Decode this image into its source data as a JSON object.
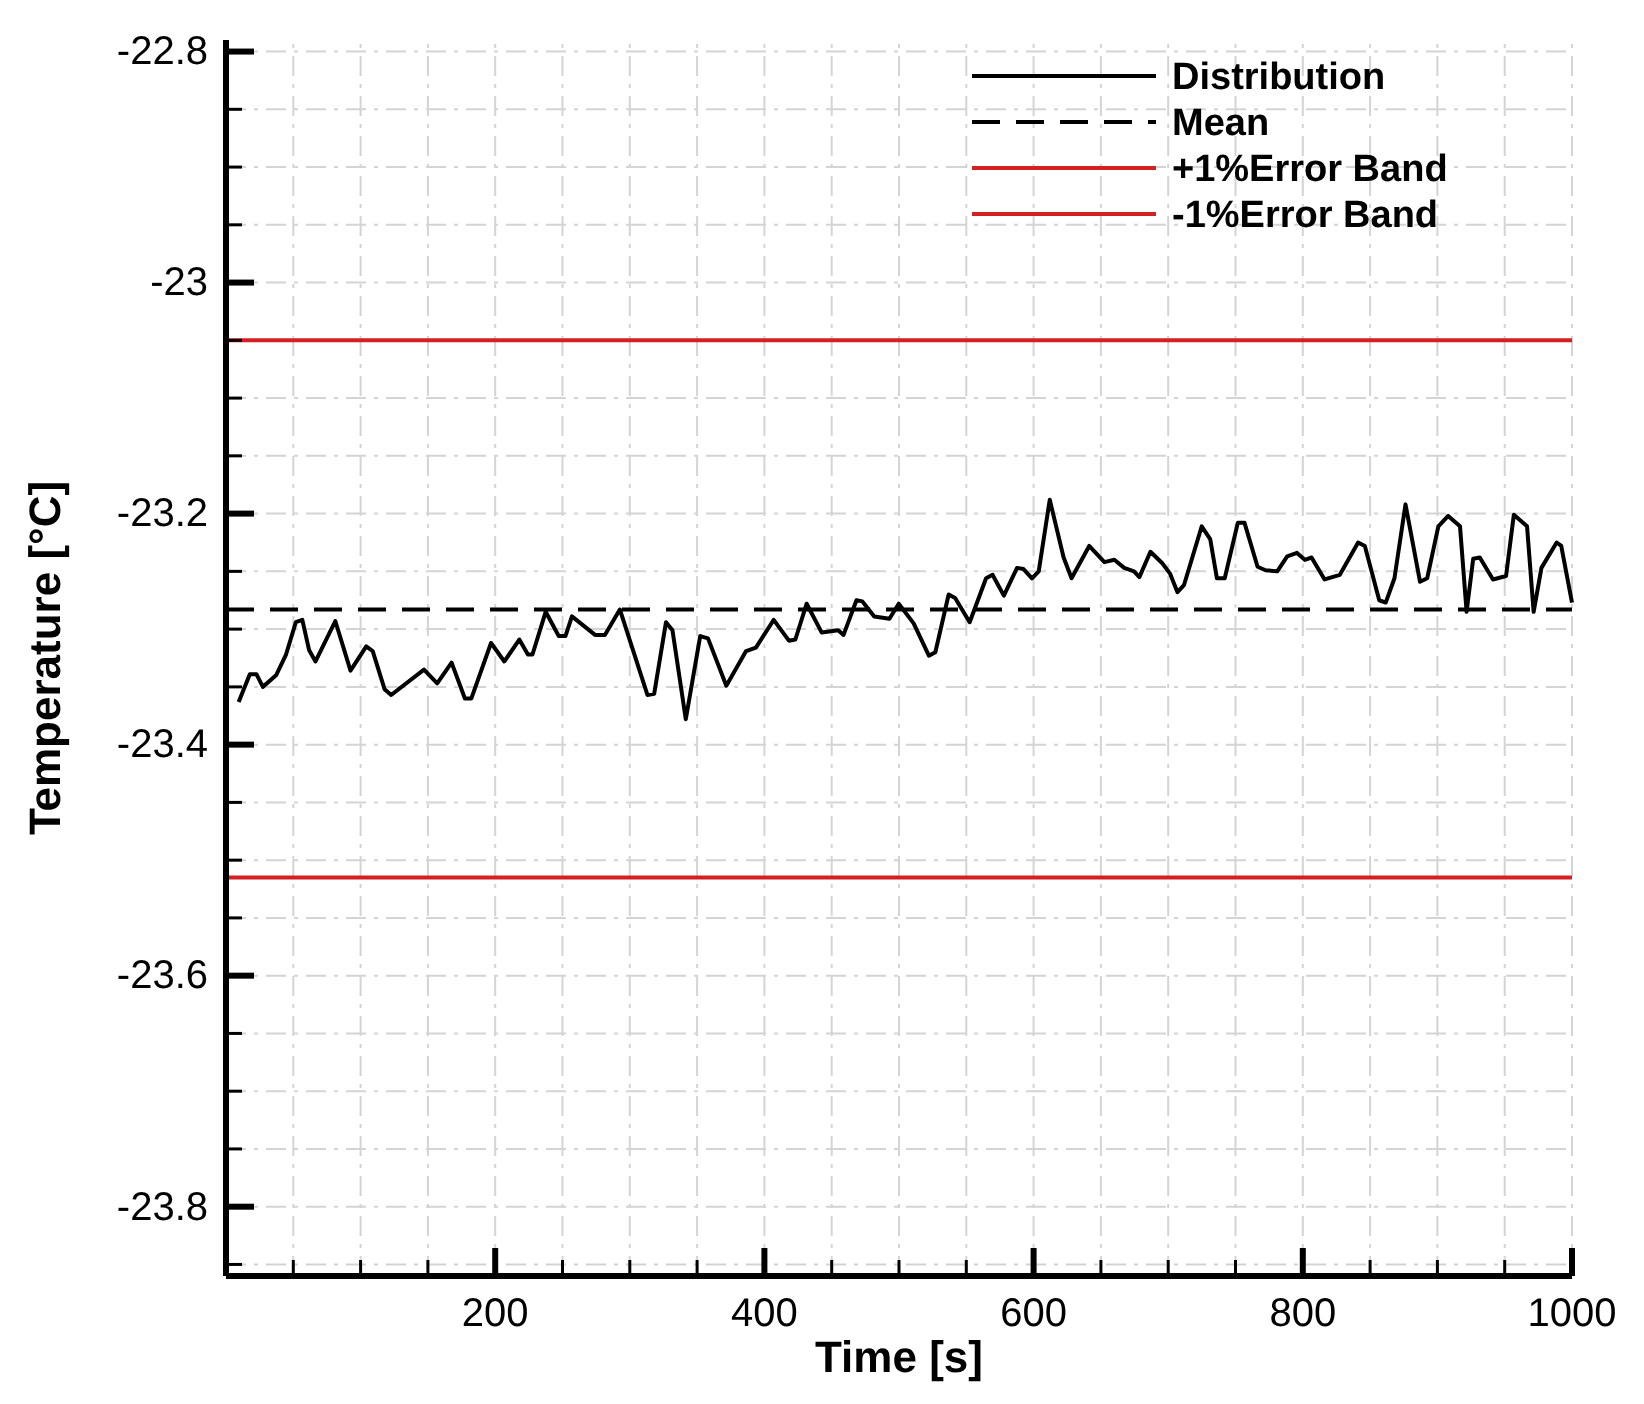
{
  "chart_data": {
    "type": "line",
    "xlabel": "Time [s]",
    "ylabel": "Temperature [°C]",
    "xlim": [
      0,
      1000
    ],
    "ylim": [
      -23.86,
      -22.79
    ],
    "xticks": [
      {
        "value": 50,
        "label": null
      },
      200,
      {
        "value": 100,
        "label": null
      },
      {
        "value": 150,
        "label": null
      },
      {
        "value": 250,
        "label": null
      },
      {
        "value": 300,
        "label": null
      },
      {
        "value": 350,
        "label": null
      },
      400,
      {
        "value": 450,
        "label": null
      },
      {
        "value": 500,
        "label": null
      },
      {
        "value": 550,
        "label": null
      },
      600,
      {
        "value": 650,
        "label": null
      },
      {
        "value": 700,
        "label": null
      },
      {
        "value": 750,
        "label": null
      },
      800,
      {
        "value": 850,
        "label": null
      },
      {
        "value": 900,
        "label": null
      },
      {
        "value": 950,
        "label": null
      },
      1000
    ],
    "yticks": [
      -22.8,
      {
        "value": -22.85,
        "label": null
      },
      {
        "value": -22.9,
        "label": null
      },
      {
        "value": -22.95,
        "label": null
      },
      -23,
      {
        "value": -23.05,
        "label": null
      },
      {
        "value": -23.1,
        "label": null
      },
      {
        "value": -23.15,
        "label": null
      },
      -23.2,
      {
        "value": -23.25,
        "label": null
      },
      {
        "value": -23.3,
        "label": null
      },
      {
        "value": -23.35,
        "label": null
      },
      -23.4,
      {
        "value": -23.45,
        "label": null
      },
      {
        "value": -23.5,
        "label": null
      },
      {
        "value": -23.55,
        "label": null
      },
      -23.6,
      {
        "value": -23.65,
        "label": null
      },
      {
        "value": -23.7,
        "label": null
      },
      {
        "value": -23.75,
        "label": null
      },
      -23.8,
      {
        "value": -23.85,
        "label": null
      }
    ],
    "grid": true,
    "legend": "top right",
    "series": [
      {
        "name": "Distribution",
        "color": "#000000",
        "line_style": "solid",
        "x": [
          9.4,
          17.7,
          22.6,
          27.4,
          37.2,
          44.6,
          51.9,
          56.7,
          61.7,
          66.5,
          81.2,
          92.5,
          104.2,
          109,
          117.8,
          122.7,
          147.1,
          156.9,
          167.6,
          177.5,
          182.3,
          196.9,
          206.8,
          217.9,
          224.3,
          227.7,
          237.5,
          247.2,
          252.2,
          257,
          274.2,
          281.5,
          292.6,
          313.1,
          318.1,
          326.9,
          331.7,
          341.6,
          352.3,
          358.1,
          371.7,
          386.4,
          393.7,
          406.9,
          418.2,
          423,
          431.4,
          442.6,
          454.8,
          458.8,
          468.4,
          472.8,
          481.6,
          492.9,
          499.8,
          510.9,
          522.2,
          527,
          536.9,
          541.7,
          552.5,
          564.7,
          569.5,
          577.9,
          587.7,
          592.5,
          598.8,
          603.8,
          612,
          622.3,
          628.2,
          641.3,
          652.6,
          660,
          667.3,
          674.6,
          678.6,
          686.8,
          695.6,
          701.4,
          706.9,
          711.7,
          724.9,
          731.2,
          736.2,
          742,
          751.7,
          756.7,
          766.4,
          772.3,
          781,
          788.4,
          795.7,
          801.5,
          806.5,
          816.2,
          827.5,
          841.1,
          846.1,
          856.8,
          861.6,
          868.1,
          876.3,
          887.1,
          892.4,
          900.7,
          908,
          916.8,
          921.7,
          926.6,
          931.5,
          941.3,
          951,
          956.8,
          966.6,
          971.5,
          977.3,
          988.6,
          992,
          1000
        ],
        "values": [
          -23.363,
          -23.339,
          -23.339,
          -23.35,
          -23.34,
          -23.322,
          -23.294,
          -23.292,
          -23.318,
          -23.328,
          -23.293,
          -23.336,
          -23.315,
          -23.319,
          -23.352,
          -23.357,
          -23.335,
          -23.347,
          -23.329,
          -23.36,
          -23.36,
          -23.312,
          -23.328,
          -23.309,
          -23.322,
          -23.322,
          -23.285,
          -23.306,
          -23.306,
          -23.289,
          -23.305,
          -23.305,
          -23.283,
          -23.357,
          -23.356,
          -23.294,
          -23.301,
          -23.378,
          -23.306,
          -23.308,
          -23.349,
          -23.319,
          -23.316,
          -23.292,
          -23.31,
          -23.309,
          -23.278,
          -23.303,
          -23.301,
          -23.305,
          -23.275,
          -23.276,
          -23.289,
          -23.291,
          -23.278,
          -23.295,
          -23.323,
          -23.32,
          -23.27,
          -23.273,
          -23.294,
          -23.256,
          -23.253,
          -23.271,
          -23.247,
          -23.248,
          -23.256,
          -23.25,
          -23.188,
          -23.238,
          -23.256,
          -23.228,
          -23.242,
          -23.24,
          -23.247,
          -23.25,
          -23.255,
          -23.233,
          -23.243,
          -23.252,
          -23.268,
          -23.262,
          -23.211,
          -23.222,
          -23.256,
          -23.256,
          -23.208,
          -23.208,
          -23.246,
          -23.249,
          -23.25,
          -23.237,
          -23.234,
          -23.24,
          -23.238,
          -23.257,
          -23.253,
          -23.225,
          -23.228,
          -23.275,
          -23.277,
          -23.256,
          -23.192,
          -23.259,
          -23.256,
          -23.211,
          -23.202,
          -23.211,
          -23.285,
          -23.239,
          -23.238,
          -23.257,
          -23.254,
          -23.201,
          -23.211,
          -23.285,
          -23.247,
          -23.225,
          -23.228,
          -23.277
        ]
      },
      {
        "name": "Mean",
        "color": "#000000",
        "line_style": "dashed",
        "x": [
          0,
          1000
        ],
        "values": [
          -23.283,
          -23.283
        ]
      },
      {
        "name": "+1%Error Band",
        "color": "#d42020",
        "line_style": "solid",
        "x": [
          0,
          1000
        ],
        "values": [
          -23.05,
          -23.05
        ]
      },
      {
        "name": "-1%Error Band",
        "color": "#d42020",
        "line_style": "solid",
        "x": [
          0,
          1000
        ],
        "values": [
          -23.515,
          -23.515
        ]
      }
    ]
  }
}
